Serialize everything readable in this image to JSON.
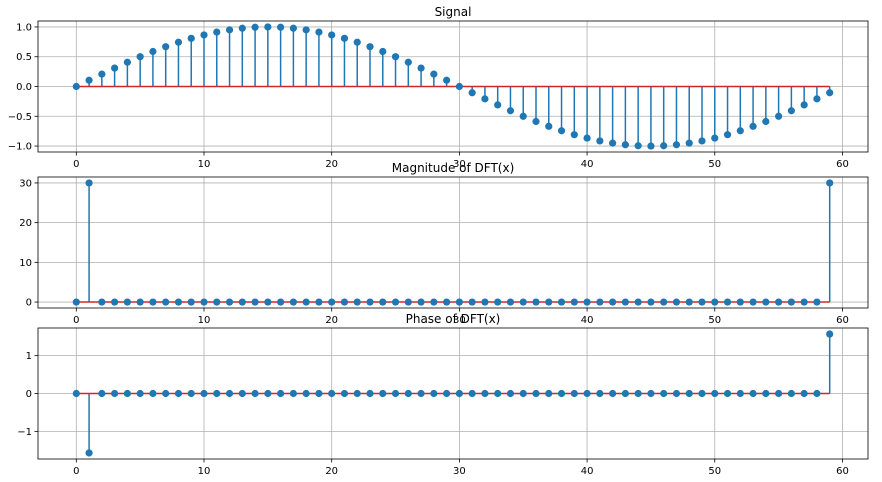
{
  "chart_data": [
    {
      "type": "stem",
      "title": "Signal",
      "xlabel": "",
      "ylabel": "",
      "xlim": [
        -3,
        62
      ],
      "ylim": [
        -1.1,
        1.1
      ],
      "grid": true,
      "xticks": [
        0,
        10,
        20,
        30,
        40,
        50,
        60
      ],
      "yticks": [
        -1.0,
        -0.5,
        0.0,
        0.5,
        1.0
      ],
      "ytick_labels": [
        "−1.0",
        "−0.5",
        "0.0",
        "0.5",
        "1.0"
      ],
      "x": [
        0,
        1,
        2,
        3,
        4,
        5,
        6,
        7,
        8,
        9,
        10,
        11,
        12,
        13,
        14,
        15,
        16,
        17,
        18,
        19,
        20,
        21,
        22,
        23,
        24,
        25,
        26,
        27,
        28,
        29,
        30,
        31,
        32,
        33,
        34,
        35,
        36,
        37,
        38,
        39,
        40,
        41,
        42,
        43,
        44,
        45,
        46,
        47,
        48,
        49,
        50,
        51,
        52,
        53,
        54,
        55,
        56,
        57,
        58,
        59
      ],
      "values": [
        0.0,
        0.105,
        0.208,
        0.309,
        0.407,
        0.5,
        0.588,
        0.669,
        0.743,
        0.809,
        0.866,
        0.914,
        0.951,
        0.978,
        0.995,
        1.0,
        0.995,
        0.978,
        0.951,
        0.914,
        0.866,
        0.809,
        0.743,
        0.669,
        0.588,
        0.5,
        0.407,
        0.309,
        0.208,
        0.105,
        0.0,
        -0.105,
        -0.208,
        -0.309,
        -0.407,
        -0.5,
        -0.588,
        -0.669,
        -0.743,
        -0.809,
        -0.866,
        -0.914,
        -0.951,
        -0.978,
        -0.995,
        -1.0,
        -0.995,
        -0.978,
        -0.951,
        -0.914,
        -0.866,
        -0.809,
        -0.743,
        -0.669,
        -0.588,
        -0.5,
        -0.407,
        -0.309,
        -0.208,
        -0.105
      ]
    },
    {
      "type": "stem",
      "title": "Magnitude of DFT(x)",
      "xlabel": "",
      "ylabel": "",
      "xlim": [
        -3,
        62
      ],
      "ylim": [
        -1.5,
        31.5
      ],
      "grid": true,
      "xticks": [
        0,
        10,
        20,
        30,
        40,
        50,
        60
      ],
      "yticks": [
        0,
        10,
        20,
        30
      ],
      "ytick_labels": [
        "0",
        "10",
        "20",
        "30"
      ],
      "x": [
        0,
        1,
        2,
        3,
        4,
        5,
        6,
        7,
        8,
        9,
        10,
        11,
        12,
        13,
        14,
        15,
        16,
        17,
        18,
        19,
        20,
        21,
        22,
        23,
        24,
        25,
        26,
        27,
        28,
        29,
        30,
        31,
        32,
        33,
        34,
        35,
        36,
        37,
        38,
        39,
        40,
        41,
        42,
        43,
        44,
        45,
        46,
        47,
        48,
        49,
        50,
        51,
        52,
        53,
        54,
        55,
        56,
        57,
        58,
        59
      ],
      "values": [
        0,
        30,
        0,
        0,
        0,
        0,
        0,
        0,
        0,
        0,
        0,
        0,
        0,
        0,
        0,
        0,
        0,
        0,
        0,
        0,
        0,
        0,
        0,
        0,
        0,
        0,
        0,
        0,
        0,
        0,
        0,
        0,
        0,
        0,
        0,
        0,
        0,
        0,
        0,
        0,
        0,
        0,
        0,
        0,
        0,
        0,
        0,
        0,
        0,
        0,
        0,
        0,
        0,
        0,
        0,
        0,
        0,
        0,
        0,
        30
      ]
    },
    {
      "type": "stem",
      "title": "Phase of DFT(x)",
      "xlabel": "",
      "ylabel": "",
      "xlim": [
        -3,
        62
      ],
      "ylim": [
        -1.73,
        1.73
      ],
      "grid": true,
      "xticks": [
        0,
        10,
        20,
        30,
        40,
        50,
        60
      ],
      "yticks": [
        -1,
        0,
        1
      ],
      "ytick_labels": [
        "−1",
        "0",
        "1"
      ],
      "x": [
        0,
        1,
        2,
        3,
        4,
        5,
        6,
        7,
        8,
        9,
        10,
        11,
        12,
        13,
        14,
        15,
        16,
        17,
        18,
        19,
        20,
        21,
        22,
        23,
        24,
        25,
        26,
        27,
        28,
        29,
        30,
        31,
        32,
        33,
        34,
        35,
        36,
        37,
        38,
        39,
        40,
        41,
        42,
        43,
        44,
        45,
        46,
        47,
        48,
        49,
        50,
        51,
        52,
        53,
        54,
        55,
        56,
        57,
        58,
        59
      ],
      "values": [
        0,
        -1.571,
        0,
        0,
        0,
        0,
        0,
        0,
        0,
        0,
        0,
        0,
        0,
        0,
        0,
        0,
        0,
        0,
        0,
        0,
        0,
        0,
        0,
        0,
        0,
        0,
        0,
        0,
        0,
        0,
        0,
        0,
        0,
        0,
        0,
        0,
        0,
        0,
        0,
        0,
        0,
        0,
        0,
        0,
        0,
        0,
        0,
        0,
        0,
        0,
        0,
        0,
        0,
        0,
        0,
        0,
        0,
        0,
        0,
        1.571
      ]
    }
  ],
  "colors": {
    "stem": "#1f77b4",
    "marker": "#1f77b4",
    "baseline": "#d62728",
    "grid": "#b0b0b0"
  }
}
